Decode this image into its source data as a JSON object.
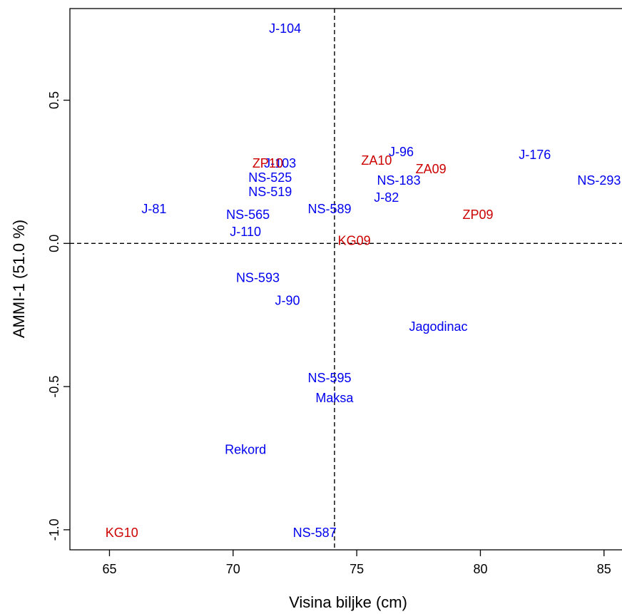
{
  "chart_data": {
    "type": "scatter",
    "title": "",
    "xlabel": "Visina biljke (cm)",
    "ylabel": "AMMI-1 (51.0 %)",
    "xlim": [
      63.4,
      85.9
    ],
    "ylim": [
      -1.07,
      0.82
    ],
    "x_ticks": [
      65,
      70,
      75,
      80,
      85
    ],
    "y_ticks": [
      -1.0,
      -0.5,
      0.0,
      0.5
    ],
    "x_tick_labels": [
      "65",
      "70",
      "75",
      "80",
      "85"
    ],
    "y_tick_labels": [
      "-1.0",
      "-0.5",
      "0.0",
      "0.5"
    ],
    "reference_lines": {
      "x": 74.1,
      "y": 0.0,
      "style": "dashed"
    },
    "colors": {
      "genotype": "#0000ee",
      "environment": "#cc0000"
    },
    "series": [
      {
        "group": "genotype",
        "points": [
          {
            "label": "J-104",
            "x": 72.1,
            "y": 0.75
          },
          {
            "label": "J-96",
            "x": 76.8,
            "y": 0.32
          },
          {
            "label": "J-176",
            "x": 82.2,
            "y": 0.31
          },
          {
            "label": "J-103",
            "x": 71.9,
            "y": 0.28
          },
          {
            "label": "NS-525",
            "x": 71.5,
            "y": 0.23
          },
          {
            "label": "NS-183",
            "x": 76.7,
            "y": 0.22
          },
          {
            "label": "NS-293",
            "x": 84.8,
            "y": 0.22
          },
          {
            "label": "NS-519",
            "x": 71.5,
            "y": 0.18
          },
          {
            "label": "J-82",
            "x": 76.2,
            "y": 0.16
          },
          {
            "label": "J-81",
            "x": 66.8,
            "y": 0.12
          },
          {
            "label": "NS-589",
            "x": 73.9,
            "y": 0.12
          },
          {
            "label": "NS-565",
            "x": 70.6,
            "y": 0.1
          },
          {
            "label": "J-110",
            "x": 70.5,
            "y": 0.04
          },
          {
            "label": "NS-593",
            "x": 71.0,
            "y": -0.12
          },
          {
            "label": "J-90",
            "x": 72.2,
            "y": -0.2
          },
          {
            "label": "Jagodinac",
            "x": 78.3,
            "y": -0.29
          },
          {
            "label": "NS-595",
            "x": 73.9,
            "y": -0.47
          },
          {
            "label": "Maksa",
            "x": 74.1,
            "y": -0.54
          },
          {
            "label": "Rekord",
            "x": 70.5,
            "y": -0.72
          },
          {
            "label": "NS-587",
            "x": 73.3,
            "y": -1.01
          }
        ]
      },
      {
        "group": "environment",
        "points": [
          {
            "label": "ZP10",
            "x": 71.4,
            "y": 0.28
          },
          {
            "label": "ZA10",
            "x": 75.8,
            "y": 0.29
          },
          {
            "label": "ZA09",
            "x": 78.0,
            "y": 0.26
          },
          {
            "label": "ZP09",
            "x": 79.9,
            "y": 0.1
          },
          {
            "label": "KG09",
            "x": 74.9,
            "y": 0.01
          },
          {
            "label": "KG10",
            "x": 65.5,
            "y": -1.01
          }
        ]
      }
    ]
  }
}
